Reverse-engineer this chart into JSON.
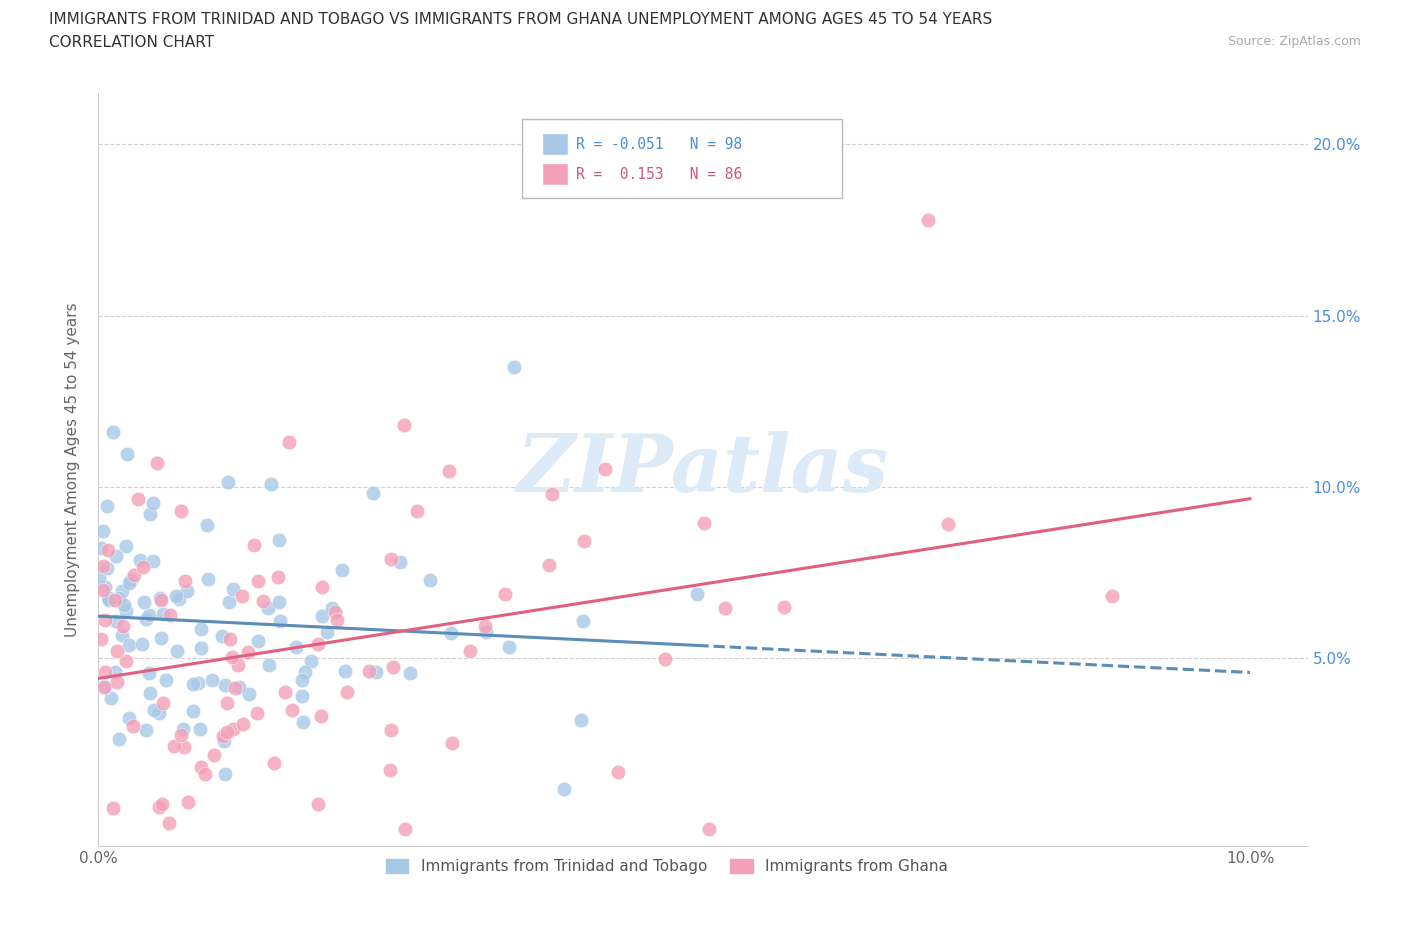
{
  "title_line1": "IMMIGRANTS FROM TRINIDAD AND TOBAGO VS IMMIGRANTS FROM GHANA UNEMPLOYMENT AMONG AGES 45 TO 54 YEARS",
  "title_line2": "CORRELATION CHART",
  "source": "Source: ZipAtlas.com",
  "ylabel": "Unemployment Among Ages 45 to 54 years",
  "xlim": [
    0.0,
    0.105
  ],
  "ylim": [
    -0.005,
    0.215
  ],
  "color_tt": "#a8c8e8",
  "color_gh": "#f4a0b8",
  "color_tt_line": "#5b8db8",
  "color_gh_line": "#e06080",
  "label_tt": "Immigrants from Trinidad and Tobago",
  "label_gh": "Immigrants from Ghana",
  "watermark": "ZIPatlas",
  "N_tt": 98,
  "N_gh": 86,
  "R_tt": -0.051,
  "R_gh": 0.153,
  "tt_intercept": 0.062,
  "tt_slope": -0.2,
  "gh_intercept": 0.042,
  "gh_slope": 0.45,
  "seed": 42
}
